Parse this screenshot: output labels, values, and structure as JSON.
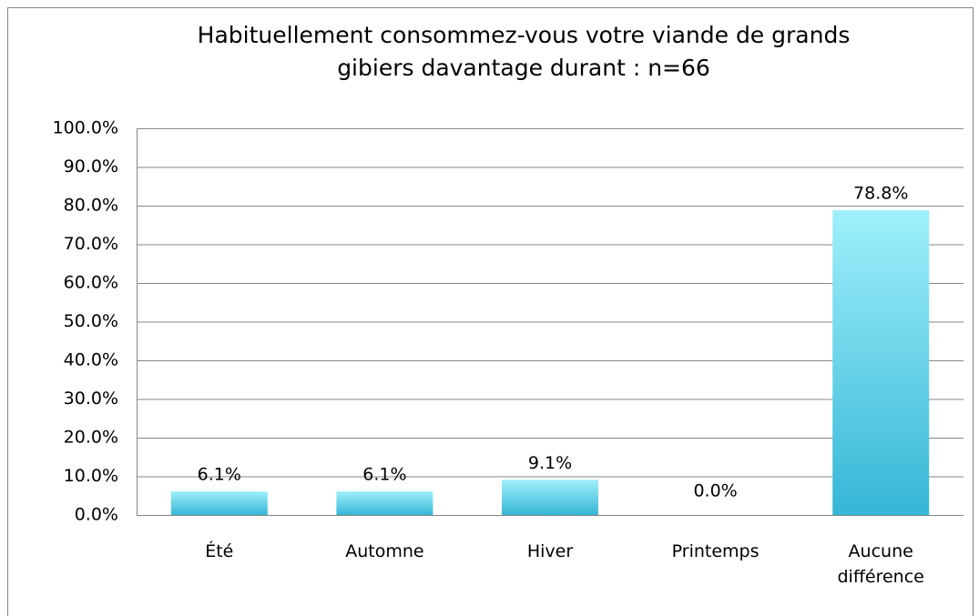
{
  "chart_data": {
    "type": "bar",
    "title": [
      "Habituellement consommez-vous votre viande de grands",
      "gibiers davantage durant :  n=66"
    ],
    "categories": [
      "Été",
      "Automne",
      "Hiver",
      "Printemps",
      "Aucune différence"
    ],
    "values": [
      6.1,
      6.1,
      9.1,
      0,
      78.8
    ],
    "value_labels": [
      "6.1%",
      "6.1%",
      "9.1%",
      "0.0%",
      "78.8%"
    ],
    "color": [
      "#9ff0fb",
      "#36b6d6"
    ],
    "ylim": [
      0,
      100
    ],
    "yticks": [
      {
        "value": 0,
        "label": "0.0%"
      },
      {
        "value": 10,
        "label": "10.0%"
      },
      {
        "value": 20,
        "label": "20.0%"
      },
      {
        "value": 30,
        "label": "30.0%"
      },
      {
        "value": 40,
        "label": "40.0%"
      },
      {
        "value": 50,
        "label": "50.0%"
      },
      {
        "value": 60,
        "label": "60.0%"
      },
      {
        "value": 70,
        "label": "70.0%"
      },
      {
        "value": 80,
        "label": "80.0%"
      },
      {
        "value": 90,
        "label": "90.0%"
      },
      {
        "value": 100,
        "label": "100.0%"
      }
    ],
    "grid": true
  }
}
